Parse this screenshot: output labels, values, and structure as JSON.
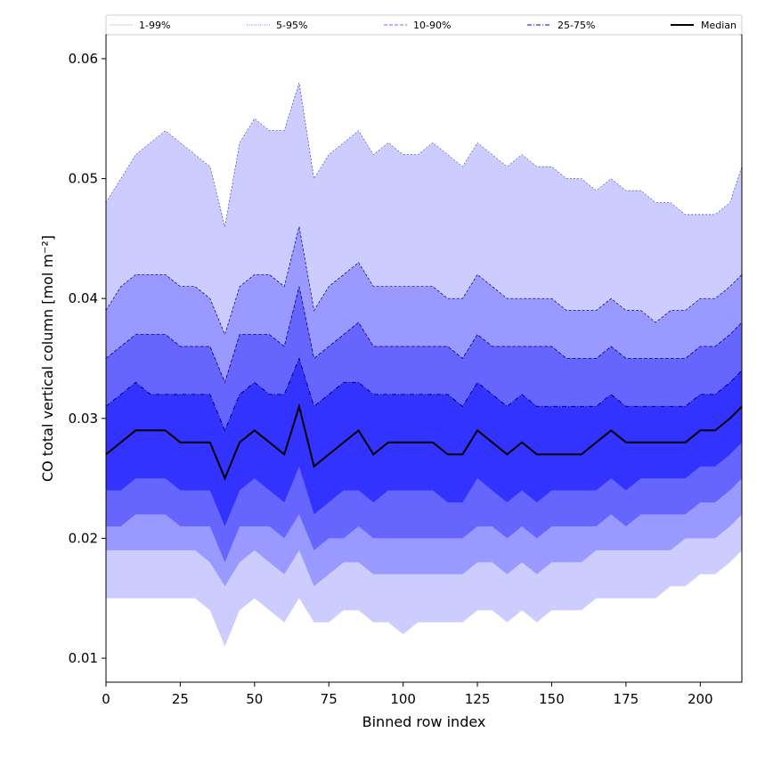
{
  "chart_data": {
    "type": "area",
    "xlabel": "Binned row index",
    "ylabel": "CO total vertical column [mol m⁻²]",
    "xlim": [
      0,
      214
    ],
    "ylim": [
      0.008,
      0.062
    ],
    "xticks": [
      0,
      25,
      50,
      75,
      100,
      125,
      150,
      175,
      200
    ],
    "yticks": [
      0.01,
      0.02,
      0.03,
      0.04,
      0.05,
      0.06
    ],
    "ytick_labels": [
      "0.01",
      "0.02",
      "0.03",
      "0.04",
      "0.05",
      "0.06"
    ],
    "legend_position": "top",
    "legend": [
      {
        "label": "1-99%",
        "color": "#cccccc",
        "style": "solid"
      },
      {
        "label": "5-95%",
        "color": "#5555cc",
        "style": "dotted"
      },
      {
        "label": "10-90%",
        "color": "#6666ff",
        "style": "dashed"
      },
      {
        "label": "25-75%",
        "color": "#3333dd",
        "style": "dashdot"
      },
      {
        "label": "Median",
        "color": "#000000",
        "style": "solid"
      }
    ],
    "colors": {
      "band_1_99": "#ccccff",
      "band_5_95": "#9999ff",
      "band_10_90": "#6666ff",
      "band_25_75": "#3333ff",
      "median": "#000000",
      "upper_edge": "#000080"
    },
    "x": [
      0,
      5,
      10,
      15,
      20,
      25,
      30,
      35,
      40,
      45,
      50,
      55,
      60,
      65,
      70,
      75,
      80,
      85,
      90,
      95,
      100,
      105,
      110,
      115,
      120,
      125,
      130,
      135,
      140,
      145,
      150,
      155,
      160,
      165,
      170,
      175,
      180,
      185,
      190,
      195,
      200,
      205,
      210,
      214
    ],
    "series": [
      {
        "name": "p99",
        "values": [
          0.048,
          0.05,
          0.052,
          0.053,
          0.054,
          0.053,
          0.052,
          0.051,
          0.046,
          0.053,
          0.055,
          0.054,
          0.054,
          0.058,
          0.05,
          0.052,
          0.053,
          0.054,
          0.052,
          0.053,
          0.052,
          0.052,
          0.053,
          0.052,
          0.051,
          0.053,
          0.052,
          0.051,
          0.052,
          0.051,
          0.051,
          0.05,
          0.05,
          0.049,
          0.05,
          0.049,
          0.049,
          0.048,
          0.048,
          0.047,
          0.047,
          0.047,
          0.048,
          0.051
        ]
      },
      {
        "name": "p95",
        "values": [
          0.039,
          0.041,
          0.042,
          0.042,
          0.042,
          0.041,
          0.041,
          0.04,
          0.037,
          0.041,
          0.042,
          0.042,
          0.041,
          0.046,
          0.039,
          0.041,
          0.042,
          0.043,
          0.041,
          0.041,
          0.041,
          0.041,
          0.041,
          0.04,
          0.04,
          0.042,
          0.041,
          0.04,
          0.04,
          0.04,
          0.04,
          0.039,
          0.039,
          0.039,
          0.04,
          0.039,
          0.039,
          0.038,
          0.039,
          0.039,
          0.04,
          0.04,
          0.041,
          0.042
        ]
      },
      {
        "name": "p90",
        "values": [
          0.035,
          0.036,
          0.037,
          0.037,
          0.037,
          0.036,
          0.036,
          0.036,
          0.033,
          0.037,
          0.037,
          0.037,
          0.036,
          0.041,
          0.035,
          0.036,
          0.037,
          0.038,
          0.036,
          0.036,
          0.036,
          0.036,
          0.036,
          0.036,
          0.035,
          0.037,
          0.036,
          0.036,
          0.036,
          0.036,
          0.036,
          0.035,
          0.035,
          0.035,
          0.036,
          0.035,
          0.035,
          0.035,
          0.035,
          0.035,
          0.036,
          0.036,
          0.037,
          0.038
        ]
      },
      {
        "name": "p75",
        "values": [
          0.031,
          0.032,
          0.033,
          0.032,
          0.032,
          0.032,
          0.032,
          0.032,
          0.029,
          0.032,
          0.033,
          0.032,
          0.032,
          0.035,
          0.031,
          0.032,
          0.033,
          0.033,
          0.032,
          0.032,
          0.032,
          0.032,
          0.032,
          0.032,
          0.031,
          0.033,
          0.032,
          0.031,
          0.032,
          0.031,
          0.031,
          0.031,
          0.031,
          0.031,
          0.032,
          0.031,
          0.031,
          0.031,
          0.031,
          0.031,
          0.032,
          0.032,
          0.033,
          0.034
        ]
      },
      {
        "name": "median",
        "values": [
          0.027,
          0.028,
          0.029,
          0.029,
          0.029,
          0.028,
          0.028,
          0.028,
          0.025,
          0.028,
          0.029,
          0.028,
          0.027,
          0.031,
          0.026,
          0.027,
          0.028,
          0.029,
          0.027,
          0.028,
          0.028,
          0.028,
          0.028,
          0.027,
          0.027,
          0.029,
          0.028,
          0.027,
          0.028,
          0.027,
          0.027,
          0.027,
          0.027,
          0.028,
          0.029,
          0.028,
          0.028,
          0.028,
          0.028,
          0.028,
          0.029,
          0.029,
          0.03,
          0.031
        ]
      },
      {
        "name": "p25",
        "values": [
          0.024,
          0.024,
          0.025,
          0.025,
          0.025,
          0.024,
          0.024,
          0.024,
          0.021,
          0.024,
          0.025,
          0.024,
          0.023,
          0.026,
          0.022,
          0.023,
          0.024,
          0.024,
          0.023,
          0.024,
          0.024,
          0.024,
          0.024,
          0.023,
          0.023,
          0.025,
          0.024,
          0.023,
          0.024,
          0.023,
          0.024,
          0.024,
          0.024,
          0.024,
          0.025,
          0.024,
          0.025,
          0.025,
          0.025,
          0.025,
          0.026,
          0.026,
          0.027,
          0.028
        ]
      },
      {
        "name": "p10",
        "values": [
          0.021,
          0.021,
          0.022,
          0.022,
          0.022,
          0.021,
          0.021,
          0.021,
          0.018,
          0.021,
          0.021,
          0.021,
          0.02,
          0.022,
          0.019,
          0.02,
          0.02,
          0.021,
          0.02,
          0.02,
          0.02,
          0.02,
          0.02,
          0.02,
          0.02,
          0.021,
          0.021,
          0.02,
          0.021,
          0.02,
          0.021,
          0.021,
          0.021,
          0.021,
          0.022,
          0.021,
          0.022,
          0.022,
          0.022,
          0.022,
          0.023,
          0.023,
          0.024,
          0.025
        ]
      },
      {
        "name": "p5",
        "values": [
          0.019,
          0.019,
          0.019,
          0.019,
          0.019,
          0.019,
          0.019,
          0.018,
          0.016,
          0.018,
          0.019,
          0.018,
          0.017,
          0.019,
          0.016,
          0.017,
          0.018,
          0.018,
          0.017,
          0.017,
          0.017,
          0.017,
          0.017,
          0.017,
          0.017,
          0.018,
          0.018,
          0.017,
          0.018,
          0.017,
          0.018,
          0.018,
          0.018,
          0.019,
          0.019,
          0.019,
          0.019,
          0.019,
          0.019,
          0.02,
          0.02,
          0.02,
          0.021,
          0.022
        ]
      },
      {
        "name": "p1",
        "values": [
          0.015,
          0.015,
          0.015,
          0.015,
          0.015,
          0.015,
          0.015,
          0.014,
          0.011,
          0.014,
          0.015,
          0.014,
          0.013,
          0.015,
          0.013,
          0.013,
          0.014,
          0.014,
          0.013,
          0.013,
          0.012,
          0.013,
          0.013,
          0.013,
          0.013,
          0.014,
          0.014,
          0.013,
          0.014,
          0.013,
          0.014,
          0.014,
          0.014,
          0.015,
          0.015,
          0.015,
          0.015,
          0.015,
          0.016,
          0.016,
          0.017,
          0.017,
          0.018,
          0.019
        ]
      }
    ]
  }
}
